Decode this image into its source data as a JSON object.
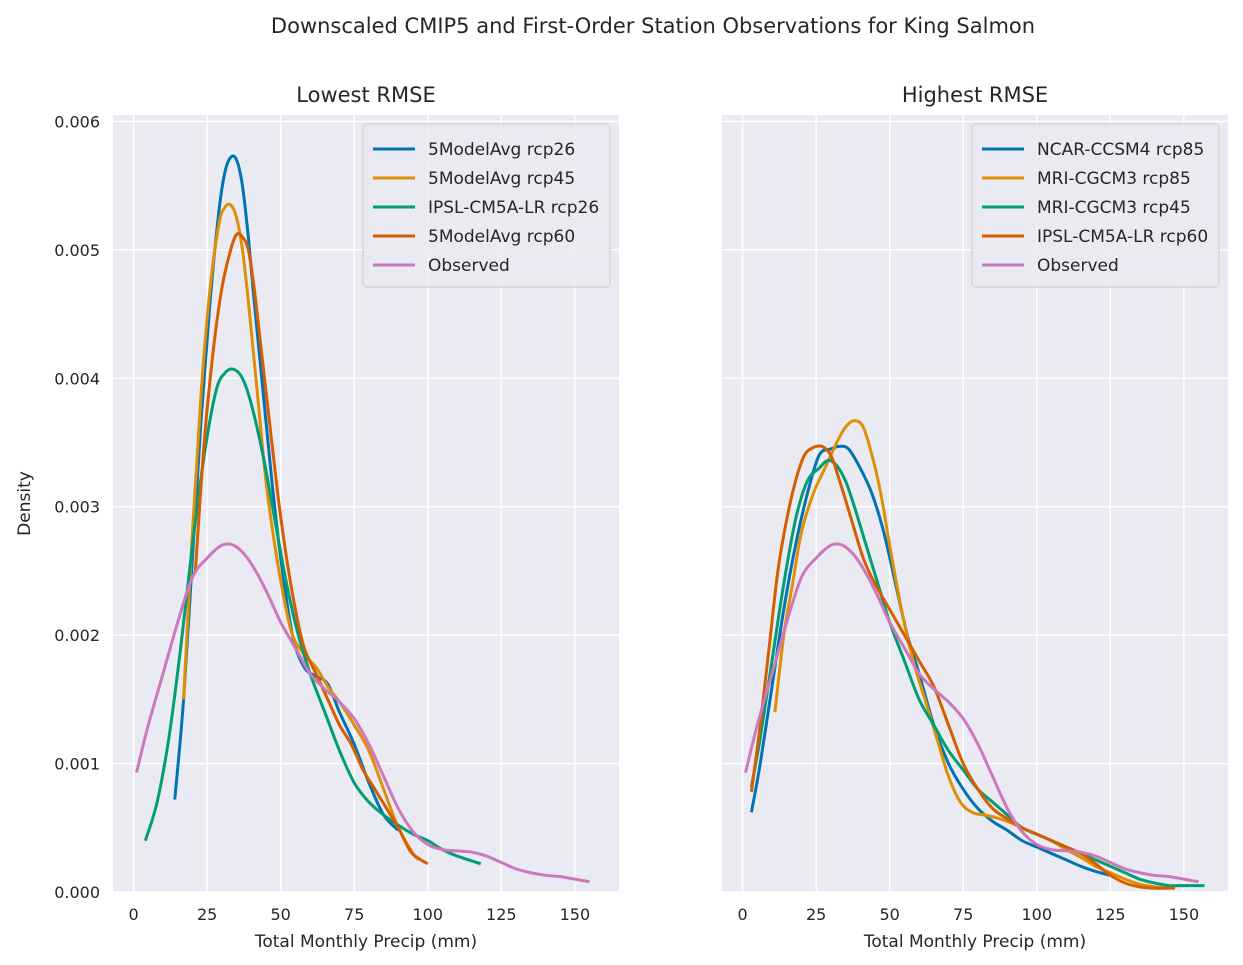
{
  "figure": {
    "title": "Downscaled CMIP5 and First-Order Station Observations for King Salmon"
  },
  "chart_data": [
    {
      "type": "line",
      "title": "Lowest RMSE",
      "xlabel": "Total Monthly Precip (mm)",
      "ylabel": "Density",
      "xlim": [
        -7,
        165
      ],
      "ylim": [
        0,
        0.00605
      ],
      "xticks": [
        0,
        25,
        50,
        75,
        100,
        125,
        150
      ],
      "yticks": [
        0.0,
        0.001,
        0.002,
        0.003,
        0.004,
        0.005,
        0.006
      ],
      "ytick_labels": [
        "0.000",
        "0.001",
        "0.002",
        "0.003",
        "0.004",
        "0.005",
        "0.006"
      ],
      "grid": true,
      "legend_position": "top-right",
      "series": [
        {
          "name": "5ModelAvg rcp26",
          "color": "#0173b2",
          "x": [
            14,
            17,
            20,
            23,
            26,
            29,
            31,
            33,
            35,
            37,
            39,
            41,
            44,
            47,
            50,
            54,
            58,
            62,
            66,
            70,
            75,
            80,
            85,
            90
          ],
          "y": [
            0.00072,
            0.0015,
            0.0026,
            0.0037,
            0.0046,
            0.0053,
            0.0056,
            0.00572,
            0.0057,
            0.0055,
            0.0051,
            0.0046,
            0.0039,
            0.0032,
            0.0026,
            0.002,
            0.00175,
            0.00168,
            0.00162,
            0.0014,
            0.00115,
            0.00085,
            0.0006,
            0.00048
          ]
        },
        {
          "name": "5ModelAvg rcp45",
          "color": "#de8f05",
          "x": [
            17,
            20,
            23,
            26,
            29,
            31,
            33,
            35,
            37,
            39,
            42,
            45,
            48,
            51,
            54,
            58,
            62,
            66,
            70,
            75,
            80,
            85,
            90,
            95,
            97
          ],
          "y": [
            0.0015,
            0.0028,
            0.0039,
            0.0047,
            0.0052,
            0.00533,
            0.00535,
            0.00525,
            0.005,
            0.0046,
            0.0039,
            0.0032,
            0.0027,
            0.0023,
            0.002,
            0.00185,
            0.00175,
            0.0016,
            0.00148,
            0.0013,
            0.0011,
            0.0008,
            0.0005,
            0.0003,
            0.00025
          ]
        },
        {
          "name": "IPSL-CM5A-LR rcp26",
          "color": "#029e73",
          "x": [
            4,
            8,
            12,
            16,
            20,
            24,
            28,
            31,
            34,
            37,
            40,
            44,
            48,
            52,
            56,
            60,
            65,
            70,
            75,
            80,
            85,
            90,
            95,
            100,
            105,
            110,
            118
          ],
          "y": [
            0.0004,
            0.0007,
            0.0012,
            0.0019,
            0.0027,
            0.0034,
            0.0039,
            0.00404,
            0.00407,
            0.004,
            0.0038,
            0.0034,
            0.0029,
            0.0024,
            0.002,
            0.0017,
            0.0014,
            0.0011,
            0.00085,
            0.0007,
            0.0006,
            0.00052,
            0.00045,
            0.0004,
            0.00033,
            0.00028,
            0.00022
          ]
        },
        {
          "name": "5ModelAvg rcp60",
          "color": "#d55e00",
          "x": [
            21,
            24,
            27,
            30,
            33,
            35,
            37,
            39,
            41,
            43,
            46,
            49,
            52,
            55,
            58,
            62,
            66,
            70,
            74,
            78,
            82,
            86,
            90,
            94,
            97,
            100
          ],
          "y": [
            0.0025,
            0.0035,
            0.0042,
            0.0047,
            0.005,
            0.00512,
            0.0051,
            0.005,
            0.0047,
            0.0043,
            0.0037,
            0.0031,
            0.0026,
            0.0022,
            0.0019,
            0.0017,
            0.0015,
            0.0013,
            0.00115,
            0.00095,
            0.0008,
            0.00065,
            0.0005,
            0.00032,
            0.00026,
            0.00022
          ]
        },
        {
          "name": "Observed",
          "color": "#cc78bc",
          "x": [
            1,
            5,
            10,
            15,
            20,
            25,
            30,
            34,
            38,
            42,
            46,
            50,
            55,
            60,
            65,
            70,
            75,
            80,
            85,
            90,
            95,
            100,
            105,
            110,
            115,
            120,
            125,
            130,
            135,
            140,
            145,
            150,
            155
          ],
          "y": [
            0.00093,
            0.0013,
            0.0017,
            0.0021,
            0.00245,
            0.0026,
            0.0027,
            0.0027,
            0.00262,
            0.00248,
            0.0023,
            0.0021,
            0.0019,
            0.0017,
            0.00158,
            0.00148,
            0.00135,
            0.00115,
            0.0009,
            0.00065,
            0.00047,
            0.00037,
            0.00033,
            0.00032,
            0.00031,
            0.00028,
            0.00023,
            0.00018,
            0.00015,
            0.00013,
            0.00012,
            0.0001,
            8e-05
          ]
        }
      ]
    },
    {
      "type": "line",
      "title": "Highest RMSE",
      "xlabel": "Total Monthly Precip (mm)",
      "ylabel": "",
      "xlim": [
        -7,
        165
      ],
      "ylim": [
        0,
        0.00605
      ],
      "xticks": [
        0,
        25,
        50,
        75,
        100,
        125,
        150
      ],
      "grid": true,
      "shared_y": true,
      "legend_position": "top-right",
      "series": [
        {
          "name": "NCAR-CCSM4 rcp85",
          "color": "#0173b2",
          "x": [
            3,
            6,
            10,
            14,
            18,
            22,
            26,
            30,
            33,
            36,
            40,
            44,
            48,
            52,
            56,
            60,
            65,
            70,
            75,
            80,
            85,
            90,
            95,
            100,
            105,
            110,
            115,
            120,
            125
          ],
          "y": [
            0.00062,
            0.001,
            0.0016,
            0.0022,
            0.0027,
            0.0031,
            0.0034,
            0.00345,
            0.00347,
            0.00345,
            0.0033,
            0.0031,
            0.0028,
            0.0024,
            0.002,
            0.0017,
            0.0013,
            0.001,
            0.0008,
            0.00065,
            0.00055,
            0.00048,
            0.0004,
            0.00035,
            0.0003,
            0.00025,
            0.0002,
            0.00016,
            0.00013
          ]
        },
        {
          "name": "MRI-CGCM3 rcp85",
          "color": "#de8f05",
          "x": [
            11,
            14,
            17,
            20,
            24,
            28,
            32,
            35,
            38,
            41,
            44,
            47,
            50,
            54,
            58,
            62,
            66,
            70,
            74,
            78,
            82,
            86,
            90,
            95,
            100,
            105,
            110,
            115,
            120,
            125,
            130,
            135,
            140,
            145
          ],
          "y": [
            0.0014,
            0.002,
            0.0024,
            0.0028,
            0.0031,
            0.0033,
            0.0035,
            0.00362,
            0.00367,
            0.00362,
            0.0034,
            0.0031,
            0.0027,
            0.0022,
            0.0018,
            0.0015,
            0.0012,
            0.0009,
            0.0007,
            0.00062,
            0.0006,
            0.00058,
            0.00055,
            0.0005,
            0.00045,
            0.0004,
            0.00033,
            0.00027,
            0.0002,
            0.00015,
            0.0001,
            6e-05,
            4e-05,
            3e-05
          ]
        },
        {
          "name": "MRI-CGCM3 rcp45",
          "color": "#029e73",
          "x": [
            3,
            6,
            10,
            14,
            18,
            22,
            26,
            29,
            32,
            35,
            38,
            42,
            46,
            50,
            55,
            60,
            65,
            70,
            75,
            80,
            85,
            90,
            95,
            100,
            105,
            110,
            115,
            120,
            125,
            130,
            135,
            140,
            145,
            150,
            157
          ],
          "y": [
            0.00082,
            0.0012,
            0.0018,
            0.0024,
            0.0029,
            0.0032,
            0.0033,
            0.00336,
            0.00332,
            0.0032,
            0.003,
            0.0027,
            0.0024,
            0.0021,
            0.0018,
            0.0015,
            0.0013,
            0.0011,
            0.00095,
            0.0008,
            0.0007,
            0.0006,
            0.0005,
            0.00045,
            0.0004,
            0.00035,
            0.0003,
            0.00025,
            0.0002,
            0.00015,
            0.0001,
            7e-05,
            5e-05,
            5e-05,
            5e-05
          ]
        },
        {
          "name": "IPSL-CM5A-LR rcp60",
          "color": "#d55e00",
          "x": [
            3,
            6,
            9,
            12,
            15,
            18,
            21,
            24,
            27,
            30,
            33,
            37,
            41,
            45,
            50,
            55,
            60,
            65,
            70,
            75,
            80,
            85,
            90,
            95,
            100,
            105,
            110,
            115,
            120,
            125,
            130,
            135,
            140,
            147
          ],
          "y": [
            0.00078,
            0.0013,
            0.0019,
            0.0025,
            0.0029,
            0.0032,
            0.0034,
            0.00346,
            0.00347,
            0.0034,
            0.0032,
            0.0029,
            0.0026,
            0.0024,
            0.0022,
            0.002,
            0.0018,
            0.0016,
            0.0013,
            0.001,
            0.0008,
            0.00065,
            0.00057,
            0.0005,
            0.00045,
            0.0004,
            0.00035,
            0.0003,
            0.00022,
            0.00013,
            7e-05,
            4e-05,
            3e-05,
            3e-05
          ]
        },
        {
          "name": "Observed",
          "color": "#cc78bc",
          "x": [
            1,
            5,
            10,
            15,
            20,
            25,
            30,
            34,
            38,
            42,
            46,
            50,
            55,
            60,
            65,
            70,
            75,
            80,
            85,
            90,
            95,
            100,
            105,
            110,
            115,
            120,
            125,
            130,
            135,
            140,
            145,
            150,
            155
          ],
          "y": [
            0.00093,
            0.0013,
            0.0017,
            0.0021,
            0.00245,
            0.0026,
            0.0027,
            0.0027,
            0.00262,
            0.00248,
            0.0023,
            0.0021,
            0.0019,
            0.0017,
            0.00158,
            0.00148,
            0.00135,
            0.00115,
            0.0009,
            0.00065,
            0.00047,
            0.00037,
            0.00033,
            0.00032,
            0.00031,
            0.00028,
            0.00023,
            0.00018,
            0.00015,
            0.00013,
            0.00012,
            0.0001,
            8e-05
          ]
        }
      ]
    }
  ]
}
